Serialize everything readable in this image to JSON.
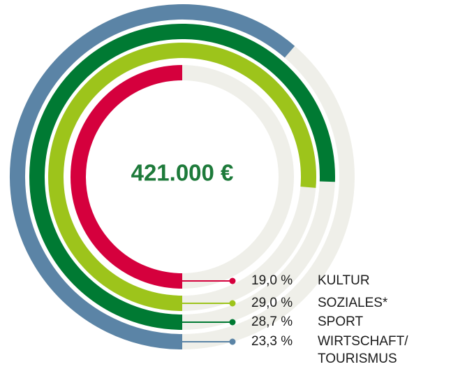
{
  "chart_data": {
    "type": "radial_bar",
    "center_label": "421.000 €",
    "categories": [
      "KULTUR",
      "SOZIALES*",
      "SPORT",
      "WIRTSCHAFT/ TOURISMUS"
    ],
    "values": [
      19.0,
      29.0,
      28.7,
      23.3
    ],
    "value_labels": [
      "19,0 %",
      "29,0 %",
      "28,7 %",
      "23,3 %"
    ],
    "colors": [
      "#d5003d",
      "#9dc41b",
      "#007a33",
      "#5b84a6"
    ],
    "track_color": "#efefe9",
    "rlim": [
      0,
      38
    ]
  }
}
